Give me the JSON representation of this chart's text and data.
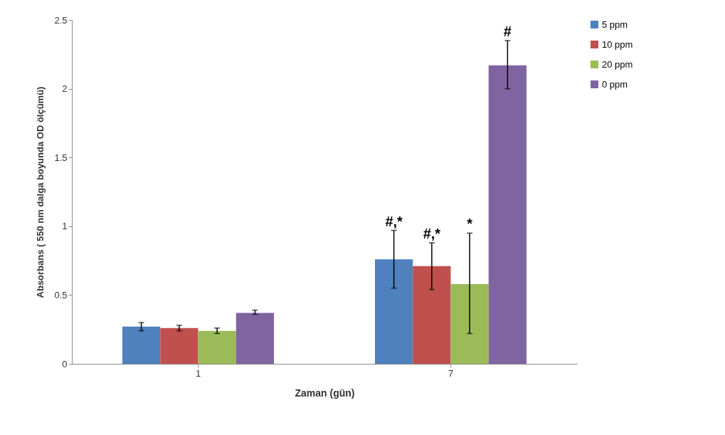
{
  "chart_data": {
    "type": "bar",
    "xlabel": "Zaman (gün)",
    "ylabel": "Absorbans ( 550 nm dalga boyunda OD ölçümü)",
    "categories": [
      "1",
      "7"
    ],
    "series": [
      {
        "name": "5 ppm",
        "color": "#4f81bd",
        "values": [
          0.27,
          0.76
        ],
        "errors": [
          [
            0.24,
            0.3
          ],
          [
            0.55,
            0.97
          ]
        ]
      },
      {
        "name": "10 ppm",
        "color": "#c0504d",
        "values": [
          0.26,
          0.71
        ],
        "errors": [
          [
            0.24,
            0.28
          ],
          [
            0.54,
            0.88
          ]
        ]
      },
      {
        "name": "20 ppm",
        "color": "#9bbb59",
        "values": [
          0.24,
          0.58
        ],
        "errors": [
          [
            0.22,
            0.26
          ],
          [
            0.22,
            0.95
          ]
        ]
      },
      {
        "name": "0 ppm",
        "color": "#8064a2",
        "values": [
          0.37,
          2.17
        ],
        "errors": [
          [
            0.36,
            0.39
          ],
          [
            2.0,
            2.35
          ]
        ]
      }
    ],
    "ylim": [
      0,
      2.5
    ],
    "yticks": [
      0,
      0.5,
      1,
      1.5,
      2,
      2.5
    ],
    "grid": false,
    "legend": "right",
    "annotations": [
      "#,*",
      "#,*",
      "*",
      "#"
    ]
  }
}
